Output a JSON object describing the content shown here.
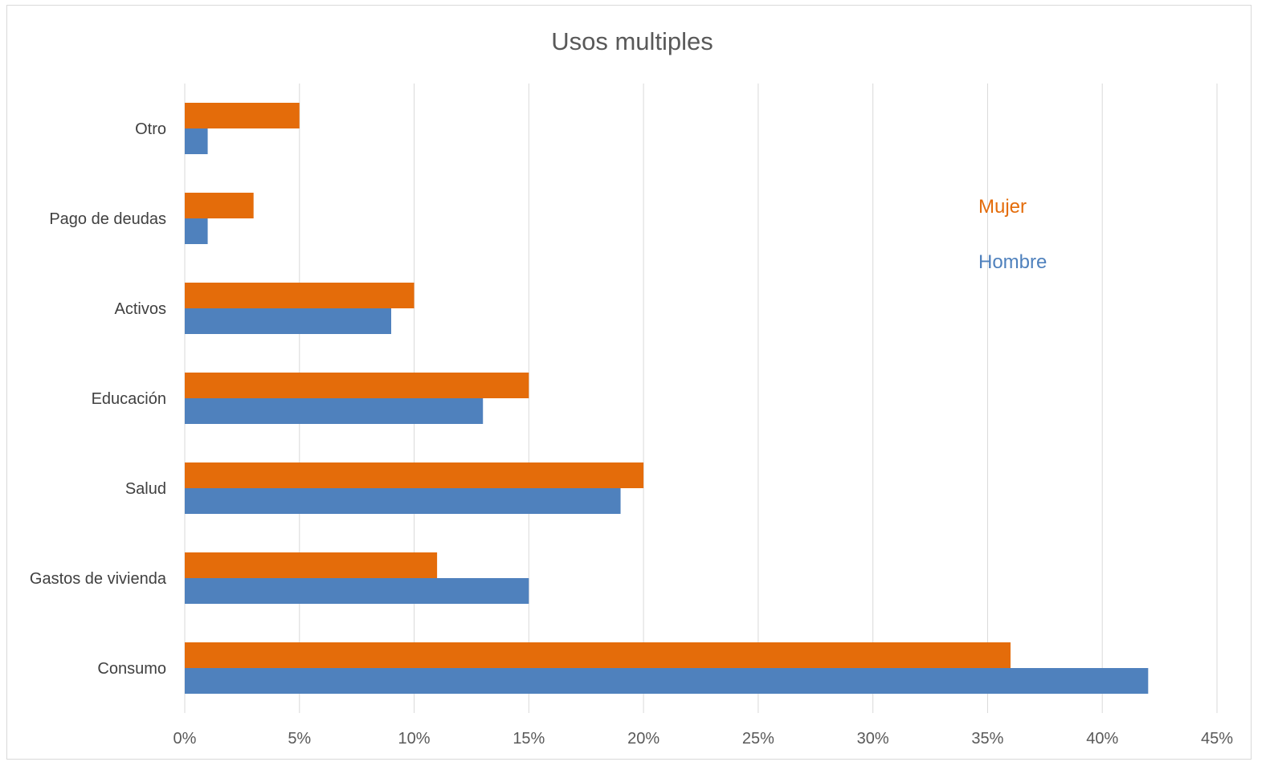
{
  "chart_data": {
    "type": "bar",
    "orientation": "horizontal",
    "title": "Usos multiples",
    "xlabel": "",
    "ylabel": "",
    "categories": [
      "Otro",
      "Pago de deudas",
      "Activos",
      "Educación",
      "Salud",
      "Gastos de vivienda",
      "Consumo"
    ],
    "series": [
      {
        "name": "Mujer",
        "color": "#E46C0A",
        "values": [
          5,
          3,
          10,
          15,
          20,
          11,
          36
        ]
      },
      {
        "name": "Hombre",
        "color": "#4F81BD",
        "values": [
          1,
          1,
          9,
          13,
          19,
          15,
          42
        ]
      }
    ],
    "xlim": [
      0,
      45
    ],
    "x_ticks": [
      0,
      5,
      10,
      15,
      20,
      25,
      30,
      35,
      40,
      45
    ],
    "tick_suffix": "%",
    "tick_labels": [
      "0%",
      "5%",
      "10%",
      "15%",
      "20%",
      "25%",
      "30%",
      "35%",
      "40%",
      "45%"
    ],
    "grid": true,
    "gridline_color": "#d9d9d9",
    "legend_placement": "right"
  }
}
